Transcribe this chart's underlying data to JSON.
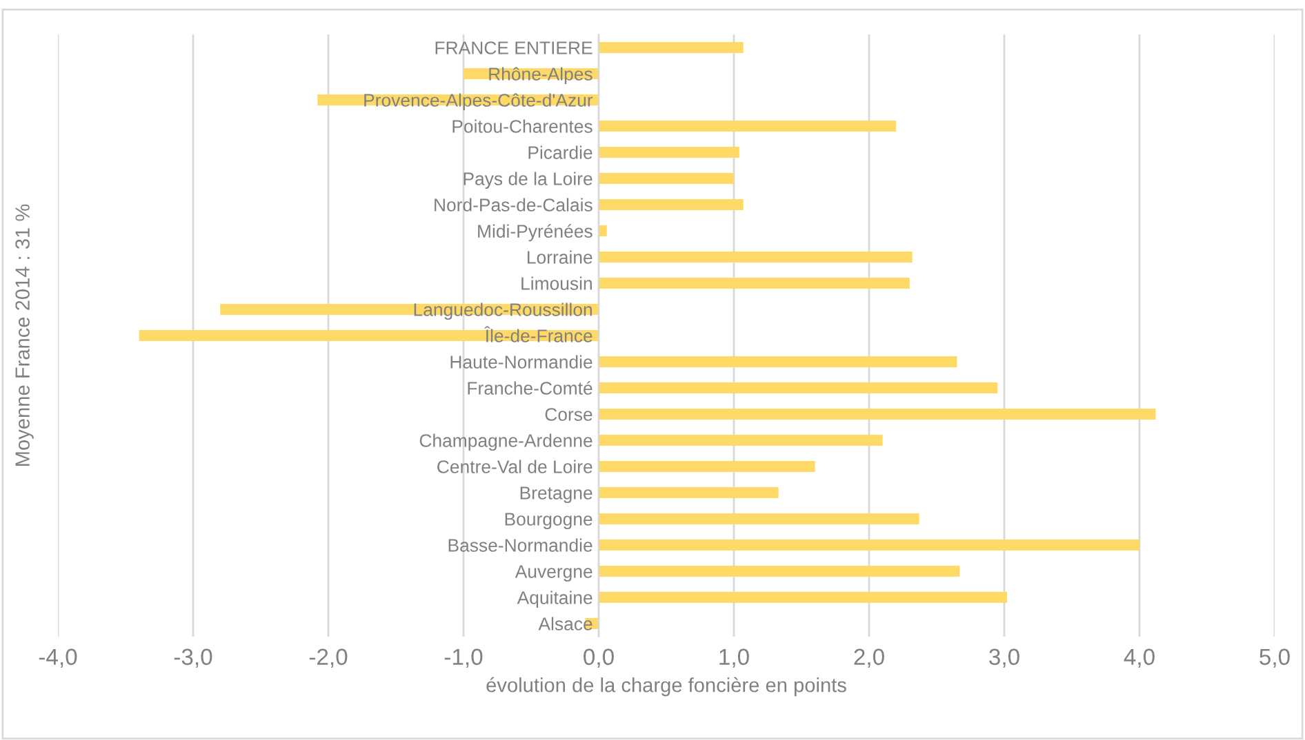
{
  "chart_data": {
    "type": "bar",
    "orientation": "horizontal",
    "xlabel": "évolution de la charge foncière en points",
    "ylabel": "Moyenne France 2014 : 31 %",
    "categories": [
      "FRANCE ENTIERE",
      "Rhône-Alpes",
      "Provence-Alpes-Côte-d'Azur",
      "Poitou-Charentes",
      "Picardie",
      "Pays de la Loire",
      "Nord-Pas-de-Calais",
      "Midi-Pyrénées",
      "Lorraine",
      "Limousin",
      "Languedoc-Roussillon",
      "Île-de-France",
      "Haute-Normandie",
      "Franche-Comté",
      "Corse",
      "Champagne-Ardenne",
      "Centre-Val de Loire",
      "Bretagne",
      "Bourgogne",
      "Basse-Normandie",
      "Auvergne",
      "Aquitaine",
      "Alsace"
    ],
    "values": [
      1.07,
      -1.0,
      -2.08,
      2.2,
      1.04,
      1.0,
      1.07,
      0.06,
      2.32,
      2.3,
      -2.8,
      -3.4,
      2.65,
      2.95,
      4.12,
      2.1,
      1.6,
      1.33,
      2.37,
      4.0,
      2.67,
      3.02,
      -0.1
    ],
    "color": "#ffd966",
    "xlim": [
      -4,
      5
    ],
    "xticks": [
      {
        "value": -4,
        "label": "-4,0"
      },
      {
        "value": -3,
        "label": "-3,0"
      },
      {
        "value": -2,
        "label": "-2,0"
      },
      {
        "value": -1,
        "label": "-1,0"
      },
      {
        "value": 0,
        "label": "0,0"
      },
      {
        "value": 1,
        "label": "1,0"
      },
      {
        "value": 2,
        "label": "2,0"
      },
      {
        "value": 3,
        "label": "3,0"
      },
      {
        "value": 4,
        "label": "4,0"
      },
      {
        "value": 5,
        "label": "5,0"
      }
    ],
    "grid": "x"
  }
}
